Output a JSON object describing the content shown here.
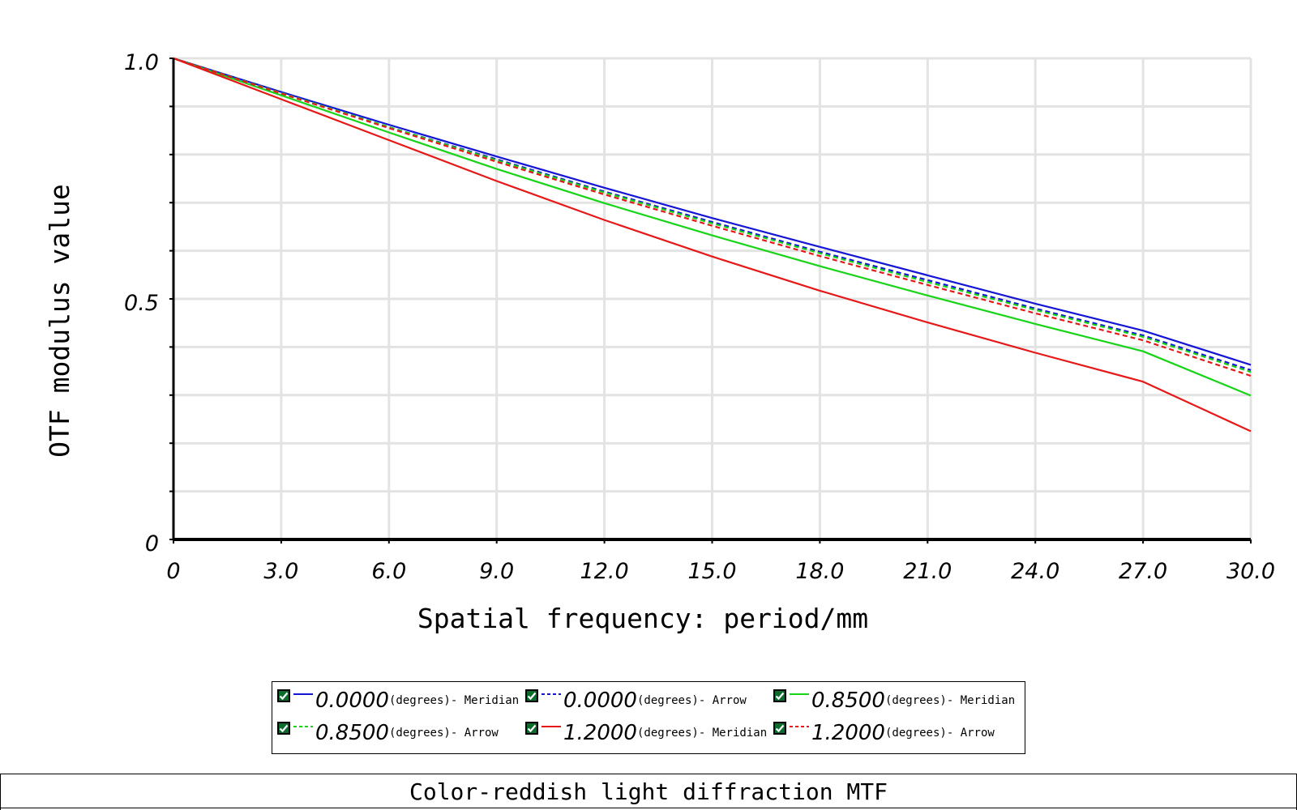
{
  "chart_data": {
    "type": "line",
    "title": "",
    "xlabel": "Spatial frequency: period/mm",
    "ylabel": "OTF modulus value",
    "xlim": [
      0,
      30
    ],
    "ylim": [
      0,
      1
    ],
    "x_ticks": [
      "0",
      "3.0",
      "6.0",
      "9.0",
      "12.0",
      "15.0",
      "18.0",
      "21.0",
      "24.0",
      "27.0",
      "30.0"
    ],
    "y_ticks": [
      "0",
      "0.5",
      "1.0"
    ],
    "grid": true,
    "x": [
      0,
      3,
      6,
      9,
      12,
      15,
      18,
      21,
      24,
      27,
      30
    ],
    "series": [
      {
        "value": "0.0000",
        "unit": "(degrees)",
        "kind": "- Meridian",
        "color": "#1515d6",
        "dash": "solid",
        "values": [
          1.0,
          0.93,
          0.862,
          0.796,
          0.731,
          0.668,
          0.608,
          0.549,
          0.49,
          0.434,
          0.363
        ]
      },
      {
        "value": "0.0000",
        "unit": "(degrees)",
        "kind": "- Arrow",
        "color": "#1515d6",
        "dash": "dashed",
        "values": [
          1.0,
          0.928,
          0.857,
          0.79,
          0.723,
          0.66,
          0.598,
          0.539,
          0.48,
          0.424,
          0.352
        ]
      },
      {
        "value": "0.8500",
        "unit": "(degrees)",
        "kind": "- Meridian",
        "color": "#17d417",
        "dash": "solid",
        "values": [
          1.0,
          0.923,
          0.846,
          0.77,
          0.699,
          0.632,
          0.568,
          0.507,
          0.448,
          0.391,
          0.299
        ]
      },
      {
        "value": "0.8500",
        "unit": "(degrees)",
        "kind": "- Arrow",
        "color": "#17d417",
        "dash": "dashed",
        "values": [
          1.0,
          0.928,
          0.857,
          0.788,
          0.721,
          0.657,
          0.595,
          0.535,
          0.477,
          0.421,
          0.348
        ]
      },
      {
        "value": "1.2000",
        "unit": "(degrees)",
        "kind": "- Meridian",
        "color": "#e61818",
        "dash": "solid",
        "values": [
          1.0,
          0.915,
          0.83,
          0.745,
          0.664,
          0.588,
          0.517,
          0.451,
          0.388,
          0.328,
          0.225
        ]
      },
      {
        "value": "1.2000",
        "unit": "(degrees)",
        "kind": "- Arrow",
        "color": "#e61818",
        "dash": "dashed",
        "values": [
          1.0,
          0.927,
          0.855,
          0.785,
          0.717,
          0.652,
          0.589,
          0.529,
          0.47,
          0.414,
          0.34
        ]
      }
    ]
  },
  "legend": {
    "check_color": "#0e6b2e",
    "items": [
      {
        "value": "0.0000",
        "unit": "(degrees)",
        "kind": "- Meridian"
      },
      {
        "value": "0.0000",
        "unit": "(degrees)",
        "kind": "- Arrow"
      },
      {
        "value": "0.8500",
        "unit": "(degrees)",
        "kind": "- Meridian"
      },
      {
        "value": "0.8500",
        "unit": "(degrees)",
        "kind": "- Arrow"
      },
      {
        "value": "1.2000",
        "unit": "(degrees)",
        "kind": "- Meridian"
      },
      {
        "value": "1.2000",
        "unit": "(degrees)",
        "kind": "- Arrow"
      }
    ]
  },
  "caption": {
    "title": "Color-reddish light diffraction MTF"
  }
}
